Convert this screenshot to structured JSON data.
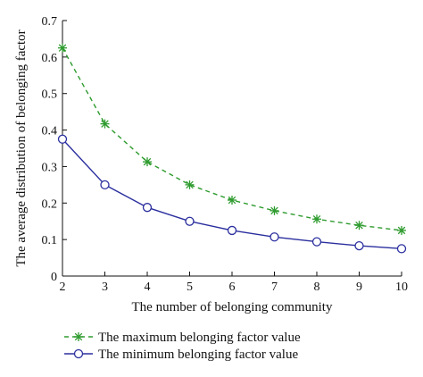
{
  "chart_data": {
    "type": "line",
    "xlabel": "The number of belonging community",
    "ylabel": "The average distribution of belonging factor",
    "x": [
      2,
      3,
      4,
      5,
      6,
      7,
      8,
      9,
      10
    ],
    "xticks": [
      "2",
      "3",
      "4",
      "5",
      "6",
      "7",
      "8",
      "9",
      "10"
    ],
    "yticks": [
      "0",
      "0.1",
      "0.2",
      "0.3",
      "0.4",
      "0.5",
      "0.6",
      "0.7"
    ],
    "xlim": [
      2,
      10
    ],
    "ylim": [
      0,
      0.7
    ],
    "grid": false,
    "legend_position": "bottom",
    "series": [
      {
        "name": "The maximum belonging factor value",
        "values": [
          0.625,
          0.417,
          0.313,
          0.25,
          0.208,
          0.179,
          0.156,
          0.139,
          0.125
        ],
        "color": "#2e9b2e",
        "line_style": "dashed",
        "marker": "asterisk"
      },
      {
        "name": "The minimum belonging factor value",
        "values": [
          0.375,
          0.25,
          0.188,
          0.15,
          0.125,
          0.107,
          0.094,
          0.083,
          0.075
        ],
        "color": "#2b2f9e",
        "line_style": "solid",
        "marker": "circle"
      }
    ]
  }
}
